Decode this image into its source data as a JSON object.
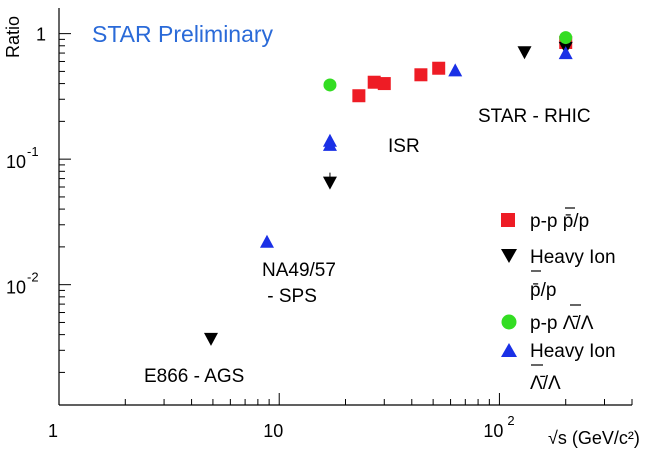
{
  "chart_data": {
    "type": "scatter",
    "title": "STAR Preliminary",
    "ylabel": "Ratio",
    "xlabel": "√s (GeV/c²)",
    "xscale": "log",
    "yscale": "log",
    "xlim": [
      1,
      400
    ],
    "ylim": [
      0.0011,
      1.6
    ],
    "x_ticks": [
      {
        "value": 1,
        "label": "1",
        "sup": ""
      },
      {
        "value": 10,
        "label": "10",
        "sup": ""
      },
      {
        "value": 100,
        "label": "10",
        "sup": "2"
      }
    ],
    "y_ticks": [
      {
        "value": 1,
        "label": "1",
        "sup": ""
      },
      {
        "value": 0.1,
        "label": "10",
        "sup": "-1"
      },
      {
        "value": 0.01,
        "label": "10",
        "sup": "-2"
      }
    ],
    "series": [
      {
        "name": "p-p p̄/p",
        "marker": "square",
        "color": "#ee1c25",
        "points": [
          [
            23,
            0.32
          ],
          [
            27,
            0.41
          ],
          [
            30,
            0.4
          ],
          [
            44,
            0.47
          ],
          [
            53,
            0.53
          ],
          [
            200,
            0.85
          ]
        ]
      },
      {
        "name": "Heavy Ion p̄/p",
        "marker": "triangle-down",
        "color": "#000000",
        "points": [
          [
            4.9,
            0.0037
          ],
          [
            17,
            0.065
          ],
          [
            130,
            0.71
          ],
          [
            200,
            0.77
          ]
        ]
      },
      {
        "name": "p-p Λ̄/Λ",
        "marker": "circle",
        "color": "#33dd22",
        "points": [
          [
            17,
            0.39
          ],
          [
            200,
            0.93
          ]
        ]
      },
      {
        "name": "Heavy Ion Λ̄/Λ",
        "marker": "triangle-up",
        "color": "#1a30e6",
        "points": [
          [
            8.8,
            0.022
          ],
          [
            17,
            0.13
          ],
          [
            17,
            0.14
          ],
          [
            63,
            0.51
          ],
          [
            200,
            0.7
          ]
        ]
      }
    ],
    "annotations": {
      "star_rhic": "STAR - RHIC",
      "isr": "ISR",
      "sps_line1": "NA49/57",
      "sps_line2": " - SPS",
      "ags": "E866 - AGS"
    },
    "legend": {
      "position": "bottom-right",
      "items": [
        {
          "marker": "square",
          "color": "#ee1c25",
          "line1": "p-p p̄/p",
          "line2": ""
        },
        {
          "marker": "triangle-down",
          "color": "#000000",
          "line1": "Heavy Ion",
          "line2": "p̄/p"
        },
        {
          "marker": "circle",
          "color": "#33dd22",
          "line1": "p-p Λ̄/Λ",
          "line2": ""
        },
        {
          "marker": "triangle-up",
          "color": "#1a30e6",
          "line1": "Heavy Ion",
          "line2": "Λ̄/Λ"
        }
      ]
    },
    "title_color": "#2a6ad8"
  }
}
